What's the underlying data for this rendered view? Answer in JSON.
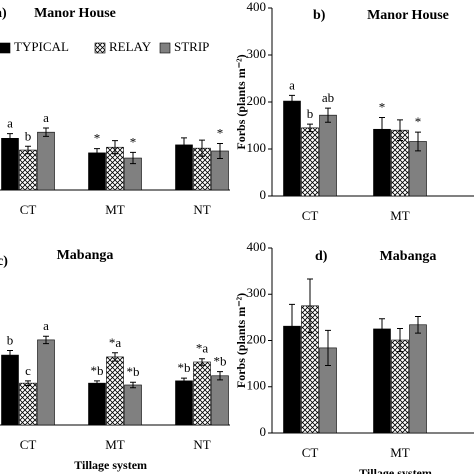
{
  "chart_data": [
    {
      "type": "bar",
      "panel_label": "a)",
      "title": "Manor House",
      "categories": [
        "CT",
        "MT",
        "NT"
      ],
      "ylim": [
        0,
        400
      ],
      "legend": "top-left",
      "series": [
        {
          "name": "TYPICAL",
          "color": "#000000",
          "values": [
            110,
            79,
            96
          ],
          "errors": [
            10,
            9,
            15
          ],
          "annotations": [
            "a",
            "*",
            null
          ]
        },
        {
          "name": "RELAY",
          "color": "#ffffff",
          "pattern": "crosshatch",
          "values": [
            85,
            91,
            89
          ],
          "errors": [
            8,
            14,
            17
          ],
          "annotations": [
            "b",
            null,
            null
          ]
        },
        {
          "name": "STRIP",
          "color": "#808080",
          "values": [
            123,
            68,
            83
          ],
          "errors": [
            9,
            12,
            16
          ],
          "annotations": [
            "a",
            "*",
            "*"
          ]
        }
      ]
    },
    {
      "type": "bar",
      "panel_label": "b)",
      "title": "Manor House",
      "categories": [
        "CT",
        "MT"
      ],
      "ylabel": "Forbs (plants m⁻²)",
      "ylim": [
        0,
        400
      ],
      "yticks": [
        0,
        100,
        200,
        300,
        400
      ],
      "series": [
        {
          "color": "#000000",
          "values": [
            202,
            142
          ],
          "errors": [
            12,
            25
          ],
          "annotations": [
            "a",
            "*"
          ]
        },
        {
          "color": "#ffffff",
          "pattern": "crosshatch",
          "values": [
            145,
            140
          ],
          "errors": [
            8,
            22
          ],
          "annotations": [
            "b",
            null
          ]
        },
        {
          "color": "#808080",
          "values": [
            172,
            116
          ],
          "errors": [
            15,
            20
          ],
          "annotations": [
            "ab",
            "*"
          ]
        }
      ]
    },
    {
      "type": "bar",
      "panel_label": "c)",
      "title": "Mabanga",
      "categories": [
        "CT",
        "MT",
        "NT"
      ],
      "xlabel": "Tillage system",
      "ylim": [
        0,
        400
      ],
      "series": [
        {
          "color": "#000000",
          "values": [
            152,
            91,
            96
          ],
          "errors": [
            10,
            5,
            6
          ],
          "annotations": [
            "b",
            "*b",
            "*b"
          ]
        },
        {
          "color": "#ffffff",
          "pattern": "crosshatch",
          "values": [
            91,
            148,
            137
          ],
          "errors": [
            5,
            9,
            7
          ],
          "annotations": [
            "c",
            "*a",
            "*a"
          ]
        },
        {
          "color": "#808080",
          "values": [
            185,
            87,
            107
          ],
          "errors": [
            8,
            6,
            9
          ],
          "annotations": [
            "a",
            "*b",
            "*b"
          ]
        }
      ]
    },
    {
      "type": "bar",
      "panel_label": "d)",
      "title": "Mabanga",
      "categories": [
        "CT",
        "MT"
      ],
      "xlabel": "Tillage system",
      "ylabel": "Forbs (plants m⁻²)",
      "ylim": [
        0,
        400
      ],
      "yticks": [
        0,
        100,
        200,
        300,
        400
      ],
      "series": [
        {
          "color": "#000000",
          "values": [
            231,
            225
          ],
          "errors": [
            47,
            22
          ]
        },
        {
          "color": "#ffffff",
          "pattern": "crosshatch",
          "values": [
            275,
            201
          ],
          "errors": [
            58,
            25
          ]
        },
        {
          "color": "#808080",
          "values": [
            184,
            234
          ],
          "errors": [
            38,
            18
          ]
        }
      ]
    }
  ]
}
